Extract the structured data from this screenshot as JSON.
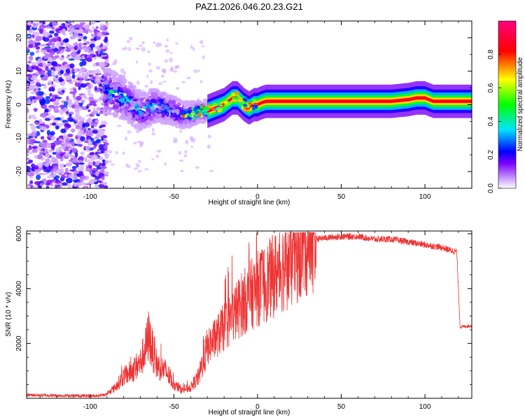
{
  "figure_title": "PAZ1.2026.046.20.23.G21",
  "chart_data": [
    {
      "type": "heatmap",
      "title": "PAZ1.2026.046.20.23.G21",
      "xlabel": "Height of straight line (km)",
      "ylabel": "Frequency (Hz)",
      "xlim": [
        -138,
        128
      ],
      "ylim": [
        -25,
        25
      ],
      "x_ticks": [
        -100,
        -50,
        0,
        50,
        100
      ],
      "x_tick_labels": [
        "-100",
        "-50",
        "0",
        "50",
        "100"
      ],
      "y_ticks": [
        -20,
        -10,
        0,
        10,
        20
      ],
      "y_tick_labels": [
        "-20",
        "-10",
        "0",
        "10",
        "20"
      ],
      "colorbar": {
        "label": "Normalized spectral amplitude",
        "range": [
          0,
          1
        ],
        "ticks": [
          0,
          0.2,
          0.4,
          0.6,
          0.8
        ],
        "tick_labels": [
          "0.0",
          "0.2",
          "0.4",
          "0.6",
          "0.8"
        ],
        "colors": [
          "#ffffff",
          "#7a00ff",
          "#0000ff",
          "#00e5ff",
          "#00ff00",
          "#ffff00",
          "#ff0000",
          "#ff0080"
        ]
      },
      "ridge": {
        "x": [
          -90,
          -80,
          -70,
          -60,
          -50,
          -45,
          -40,
          -35,
          -30,
          -25,
          -20,
          -15,
          -12,
          -8,
          -5,
          -2,
          0,
          2,
          5,
          10,
          20,
          40,
          60,
          80,
          90,
          95,
          100,
          105,
          110,
          128
        ],
        "freq": [
          4,
          2,
          -2,
          0,
          -2,
          -3,
          -3,
          -2,
          -2,
          -1,
          0,
          2,
          2,
          0,
          -1,
          0,
          0,
          0.5,
          1,
          1,
          1,
          1,
          1,
          1,
          1.5,
          2,
          2,
          1,
          1,
          1
        ]
      }
    },
    {
      "type": "line",
      "xlabel": "Height of straight line (km)",
      "ylabel": "SNR (10 * v/v)",
      "xlim": [
        -138,
        128
      ],
      "ylim": [
        0,
        6100
      ],
      "x_ticks": [
        -100,
        -50,
        0,
        50,
        100
      ],
      "x_tick_labels": [
        "-100",
        "-50",
        "0",
        "50",
        "100"
      ],
      "y_ticks": [
        2000,
        4000,
        6000
      ],
      "y_tick_labels": [
        "2000",
        "4000",
        "6000"
      ],
      "line_color": "#ee3333",
      "series": [
        {
          "name": "SNR",
          "x": [
            -138,
            -120,
            -100,
            -95,
            -90,
            -85,
            -80,
            -75,
            -70,
            -67,
            -65,
            -63,
            -60,
            -55,
            -50,
            -45,
            -40,
            -35,
            -32,
            -30,
            -28,
            -25,
            -20,
            -15,
            -10,
            -5,
            0,
            5,
            10,
            15,
            20,
            25,
            30,
            35,
            40,
            50,
            60,
            70,
            80,
            90,
            100,
            110,
            115,
            119,
            120,
            121,
            128
          ],
          "y": [
            120,
            100,
            90,
            100,
            150,
            400,
            800,
            1000,
            1300,
            1800,
            2300,
            1800,
            1200,
            1000,
            500,
            300,
            400,
            800,
            1500,
            1800,
            2000,
            2200,
            2600,
            3000,
            3400,
            3700,
            4000,
            4200,
            4500,
            4800,
            5000,
            5300,
            5700,
            5800,
            5850,
            5900,
            5900,
            5800,
            5800,
            5700,
            5600,
            5500,
            5400,
            5350,
            4000,
            2600,
            2650
          ]
        }
      ]
    }
  ]
}
